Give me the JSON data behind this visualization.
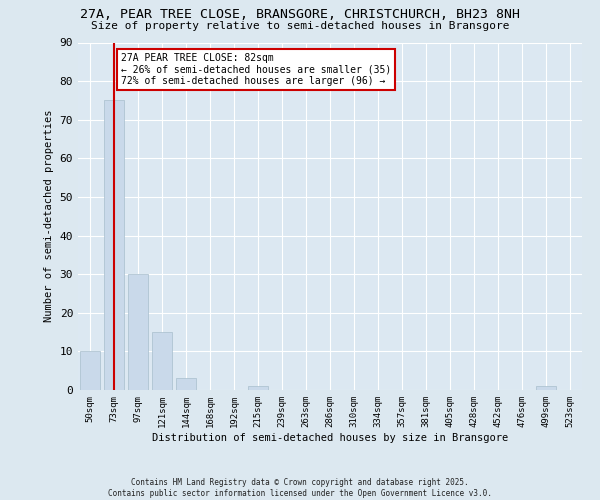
{
  "title_line1": "27A, PEAR TREE CLOSE, BRANSGORE, CHRISTCHURCH, BH23 8NH",
  "title_line2": "Size of property relative to semi-detached houses in Bransgore",
  "xlabel": "Distribution of semi-detached houses by size in Bransgore",
  "ylabel": "Number of semi-detached properties",
  "categories": [
    "50sqm",
    "73sqm",
    "97sqm",
    "121sqm",
    "144sqm",
    "168sqm",
    "192sqm",
    "215sqm",
    "239sqm",
    "263sqm",
    "286sqm",
    "310sqm",
    "334sqm",
    "357sqm",
    "381sqm",
    "405sqm",
    "428sqm",
    "452sqm",
    "476sqm",
    "499sqm",
    "523sqm"
  ],
  "values": [
    10,
    75,
    30,
    15,
    3,
    0,
    0,
    1,
    0,
    0,
    0,
    0,
    0,
    0,
    0,
    0,
    0,
    0,
    0,
    1,
    0
  ],
  "bar_color": "#c9d9ea",
  "bar_edge_color": "#a8becc",
  "highlight_index": 1,
  "highlight_line_color": "#cc0000",
  "annotation_box_color": "#cc0000",
  "annotation_text_line1": "27A PEAR TREE CLOSE: 82sqm",
  "annotation_text_line2": "← 26% of semi-detached houses are smaller (35)",
  "annotation_text_line3": "72% of semi-detached houses are larger (96) →",
  "ylim": [
    0,
    90
  ],
  "yticks": [
    0,
    10,
    20,
    30,
    40,
    50,
    60,
    70,
    80,
    90
  ],
  "footer_line1": "Contains HM Land Registry data © Crown copyright and database right 2025.",
  "footer_line2": "Contains public sector information licensed under the Open Government Licence v3.0.",
  "background_color": "#dce8f0",
  "plot_background_color": "#dce8f2"
}
